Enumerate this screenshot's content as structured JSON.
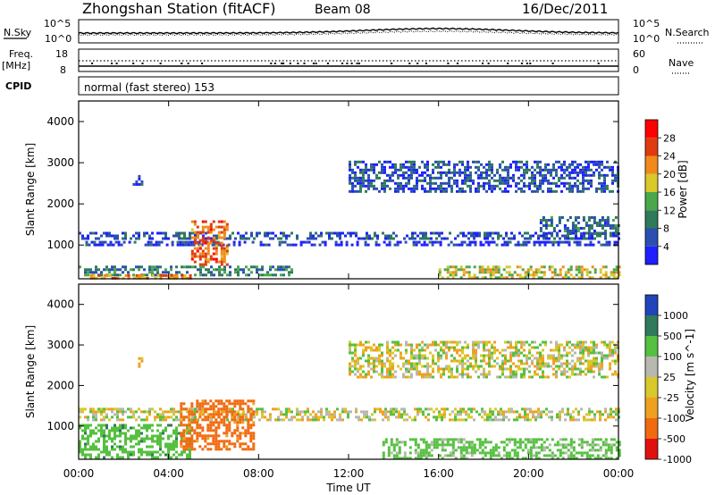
{
  "header": {
    "title": "Zhongshan Station (fitACF)",
    "beam": "Beam 08",
    "date": "16/Dec/2011"
  },
  "noise_panel": {
    "left_label": "N.Sky",
    "right_label": "N.Search",
    "left_ticks": [
      "10^5",
      "10^0"
    ],
    "right_ticks": [
      "10^5",
      "10^0"
    ]
  },
  "freq_panel": {
    "left_label_1": "Freq.",
    "left_label_2": "[MHz]",
    "right_label": "Nave",
    "left_ticks": [
      "18",
      "8"
    ],
    "right_ticks": [
      "60",
      "0"
    ]
  },
  "cpid": {
    "label": "CPID",
    "text": "normal (fast stereo) 153"
  },
  "x_axis": {
    "label": "Time UT",
    "ticks": [
      "00:00",
      "04:00",
      "08:00",
      "12:00",
      "16:00",
      "20:00",
      "00:00"
    ]
  },
  "chart_data": [
    {
      "type": "heatmap",
      "title": "Power",
      "xlabel": "Time UT",
      "ylabel": "Slant Range [km]",
      "xlim": [
        "00:00",
        "24:00"
      ],
      "ylim": [
        180,
        4500
      ],
      "yticks": [
        1000,
        2000,
        3000,
        4000
      ],
      "colorbar": {
        "label": "Power [dB]",
        "ticks": [
          "4",
          "8",
          "12",
          "16",
          "20",
          "24",
          "28"
        ],
        "colors": [
          "#1f1fff",
          "#2a4fb0",
          "#2f7a5a",
          "#4aa84a",
          "#d8c82a",
          "#f08a1a",
          "#e03a10",
          "#ff0000"
        ]
      },
      "regions": [
        {
          "t0": 0.0,
          "t1": 24.0,
          "r0": 1150,
          "r1": 1320,
          "power": 8
        },
        {
          "t0": 0.3,
          "t1": 24.0,
          "r0": 1000,
          "r1": 1100,
          "power": 6
        },
        {
          "t0": 0.0,
          "t1": 9.5,
          "r0": 300,
          "r1": 500,
          "power": 12
        },
        {
          "t0": 0.5,
          "t1": 5.0,
          "r0": 200,
          "r1": 290,
          "power": 24
        },
        {
          "t0": 5.0,
          "t1": 6.6,
          "r0": 550,
          "r1": 1600,
          "power": 26
        },
        {
          "t0": 2.4,
          "t1": 2.8,
          "r0": 2500,
          "r1": 2700,
          "power": 8
        },
        {
          "t0": 12.0,
          "t1": 24.0,
          "r0": 2300,
          "r1": 3050,
          "power": 8
        },
        {
          "t0": 16.0,
          "t1": 24.0,
          "r0": 200,
          "r1": 500,
          "power": 20
        },
        {
          "t0": 20.5,
          "t1": 24.0,
          "r0": 1300,
          "r1": 1700,
          "power": 10
        }
      ]
    },
    {
      "type": "heatmap",
      "title": "Velocity",
      "xlabel": "Time UT",
      "ylabel": "Slant Range [km]",
      "xlim": [
        "00:00",
        "24:00"
      ],
      "ylim": [
        180,
        4500
      ],
      "yticks": [
        1000,
        2000,
        3000,
        4000
      ],
      "colorbar": {
        "label": "Velocity [m s^-1]",
        "ticks": [
          "1000",
          "500",
          "100",
          "25",
          "-25",
          "-100",
          "-500",
          "-1000"
        ],
        "colors": [
          "#2244bb",
          "#2f7a5a",
          "#55c040",
          "#b8b8b0",
          "#d8c82a",
          "#f0a020",
          "#f06a10",
          "#e01010"
        ]
      },
      "regions": [
        {
          "t0": 0.0,
          "t1": 24.0,
          "r0": 1150,
          "r1": 1450,
          "velocity": 0
        },
        {
          "t0": 0.0,
          "t1": 5.0,
          "r0": 250,
          "r1": 1050,
          "velocity": 200
        },
        {
          "t0": 4.5,
          "t1": 7.8,
          "r0": 450,
          "r1": 1650,
          "velocity": -400
        },
        {
          "t0": 2.4,
          "t1": 2.8,
          "r0": 2450,
          "r1": 2700,
          "velocity": -100
        },
        {
          "t0": 12.0,
          "t1": 24.0,
          "r0": 2200,
          "r1": 3100,
          "velocity": 0
        },
        {
          "t0": 13.5,
          "t1": 24.0,
          "r0": 200,
          "r1": 700,
          "velocity": 150
        }
      ]
    }
  ]
}
